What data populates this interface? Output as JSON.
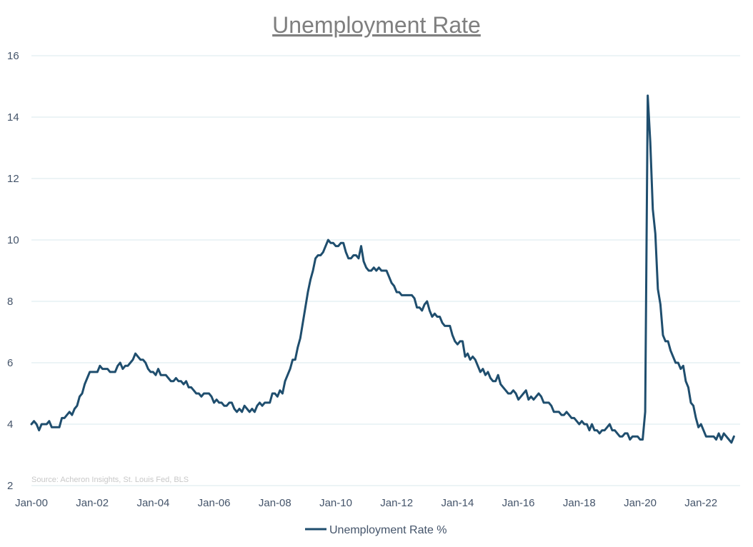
{
  "chart_data": {
    "type": "line",
    "title": "Unemployment Rate",
    "source": "Source: Acheron Insights, St. Louis Fed, BLS",
    "xlabel": "",
    "ylabel": "",
    "ylim": [
      2,
      16
    ],
    "y_ticks": [
      2,
      4,
      6,
      8,
      10,
      12,
      14,
      16
    ],
    "x_ticks": [
      "Jan-00",
      "Jan-02",
      "Jan-04",
      "Jan-06",
      "Jan-08",
      "Jan-10",
      "Jan-12",
      "Jan-14",
      "Jan-16",
      "Jan-18",
      "Jan-20",
      "Jan-22"
    ],
    "x_start": "2000-01",
    "x_end": "2022-12",
    "grid": "horizontal",
    "legend_position": "bottom",
    "colors": {
      "series": "#1f4e6e",
      "grid": "#d9e8ec"
    },
    "series": [
      {
        "name": "Unemployment Rate %",
        "values": [
          4.0,
          4.1,
          4.0,
          3.8,
          4.0,
          4.0,
          4.0,
          4.1,
          3.9,
          3.9,
          3.9,
          3.9,
          4.2,
          4.2,
          4.3,
          4.4,
          4.3,
          4.5,
          4.6,
          4.9,
          5.0,
          5.3,
          5.5,
          5.7,
          5.7,
          5.7,
          5.7,
          5.9,
          5.8,
          5.8,
          5.8,
          5.7,
          5.7,
          5.7,
          5.9,
          6.0,
          5.8,
          5.9,
          5.9,
          6.0,
          6.1,
          6.3,
          6.2,
          6.1,
          6.1,
          6.0,
          5.8,
          5.7,
          5.7,
          5.6,
          5.8,
          5.6,
          5.6,
          5.6,
          5.5,
          5.4,
          5.4,
          5.5,
          5.4,
          5.4,
          5.3,
          5.4,
          5.2,
          5.2,
          5.1,
          5.0,
          5.0,
          4.9,
          5.0,
          5.0,
          5.0,
          4.9,
          4.7,
          4.8,
          4.7,
          4.7,
          4.6,
          4.6,
          4.7,
          4.7,
          4.5,
          4.4,
          4.5,
          4.4,
          4.6,
          4.5,
          4.4,
          4.5,
          4.4,
          4.6,
          4.7,
          4.6,
          4.7,
          4.7,
          4.7,
          5.0,
          5.0,
          4.9,
          5.1,
          5.0,
          5.4,
          5.6,
          5.8,
          6.1,
          6.1,
          6.5,
          6.8,
          7.3,
          7.8,
          8.3,
          8.7,
          9.0,
          9.4,
          9.5,
          9.5,
          9.6,
          9.8,
          10.0,
          9.9,
          9.9,
          9.8,
          9.8,
          9.9,
          9.9,
          9.6,
          9.4,
          9.4,
          9.5,
          9.5,
          9.4,
          9.8,
          9.3,
          9.1,
          9.0,
          9.0,
          9.1,
          9.0,
          9.1,
          9.0,
          9.0,
          9.0,
          8.8,
          8.6,
          8.5,
          8.3,
          8.3,
          8.2,
          8.2,
          8.2,
          8.2,
          8.2,
          8.1,
          7.8,
          7.8,
          7.7,
          7.9,
          8.0,
          7.7,
          7.5,
          7.6,
          7.5,
          7.5,
          7.3,
          7.2,
          7.2,
          7.2,
          6.9,
          6.7,
          6.6,
          6.7,
          6.7,
          6.2,
          6.3,
          6.1,
          6.2,
          6.1,
          5.9,
          5.7,
          5.8,
          5.6,
          5.7,
          5.5,
          5.4,
          5.4,
          5.6,
          5.3,
          5.2,
          5.1,
          5.0,
          5.0,
          5.1,
          5.0,
          4.8,
          4.9,
          5.0,
          5.1,
          4.8,
          4.9,
          4.8,
          4.9,
          5.0,
          4.9,
          4.7,
          4.7,
          4.7,
          4.6,
          4.4,
          4.4,
          4.4,
          4.3,
          4.3,
          4.4,
          4.3,
          4.2,
          4.2,
          4.1,
          4.0,
          4.1,
          4.0,
          4.0,
          3.8,
          4.0,
          3.8,
          3.8,
          3.7,
          3.8,
          3.8,
          3.9,
          4.0,
          3.8,
          3.8,
          3.7,
          3.6,
          3.6,
          3.7,
          3.7,
          3.5,
          3.6,
          3.6,
          3.6,
          3.5,
          3.5,
          4.4,
          14.7,
          13.2,
          11.0,
          10.2,
          8.4,
          7.9,
          6.9,
          6.7,
          6.7,
          6.4,
          6.2,
          6.0,
          6.0,
          5.8,
          5.9,
          5.4,
          5.2,
          4.7,
          4.6,
          4.2,
          3.9,
          4.0,
          3.8,
          3.6,
          3.6,
          3.6,
          3.6,
          3.5,
          3.7,
          3.5,
          3.7,
          3.6,
          3.5,
          3.4,
          3.6
        ]
      }
    ]
  }
}
